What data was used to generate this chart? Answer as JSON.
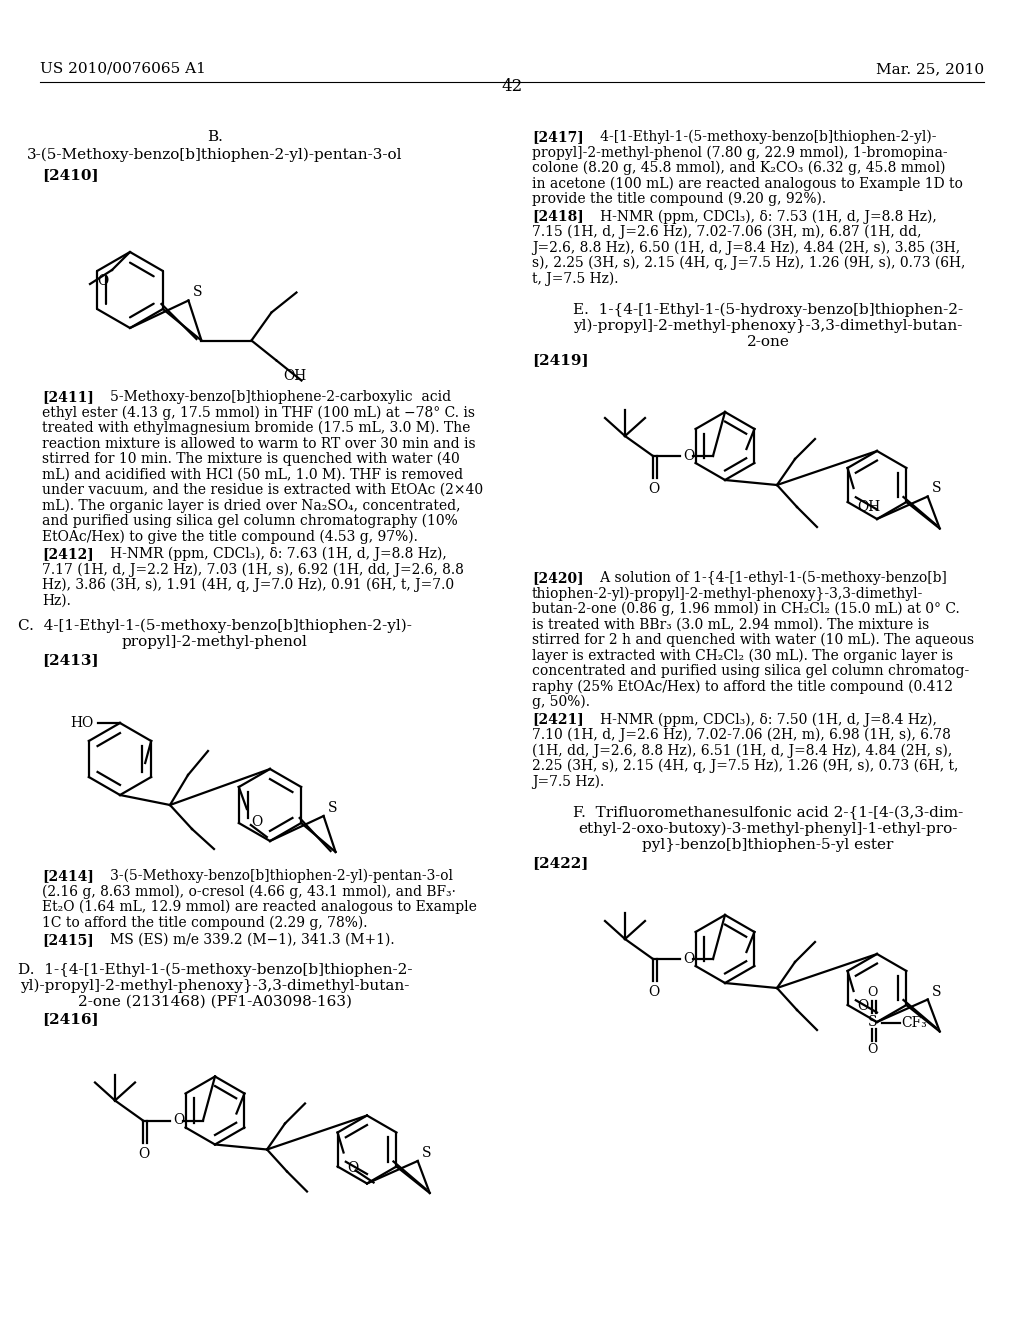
{
  "bg": "#ffffff",
  "header_left": "US 2010/0076065 A1",
  "header_right": "Mar. 25, 2010",
  "page_num": "42",
  "left_col": {
    "sec_b_title1": "B.",
    "sec_b_title2": "3-(5-Methoxy-benzo[b]thiophen-2-yl)-pentan-3-ol",
    "label_2410": "[2410]",
    "para_2411_label": "[2411]",
    "para_2411": "5-Methoxy-benzo[b]thiophene-2-carboxylic  acid ethyl ester (4.13 g, 17.5 mmol) in THF (100 mL) at −78° C. is treated with ethylmagnesium bromide (17.5 mL, 3.0 M). The reaction mixture is allowed to warm to RT over 30 min and is stirred for 10 min. The mixture is quenched with water (40 mL) and acidified with HCl (50 mL, 1.0 M). THF is removed under vacuum, and the residue is extracted with EtOAc (2×40 mL). The organic layer is dried over Na₂SO₄, concentrated, and purified using silica gel column chromatography (10% EtOAc/Hex) to give the title compound (4.53 g, 97%).",
    "para_2412_label": "[2412]",
    "para_2412": "H-NMR (ppm, CDCl₃), δ: 7.63 (1H, d, J=8.8 Hz), 7.17 (1H, d, J=2.2 Hz), 7.03 (1H, s), 6.92 (1H, dd, J=2.6, 8.8 Hz), 3.86 (3H, s), 1.91 (4H, q, J=7.0 Hz), 0.91 (6H, t, J=7.0 Hz).",
    "sec_c_title1": "C.  4-[1-Ethyl-1-(5-methoxy-benzo[b]thiophen-2-yl)-",
    "sec_c_title2": "propyl]-2-methyl-phenol",
    "label_2413": "[2413]",
    "para_2414_label": "[2414]",
    "para_2414": "3-(5-Methoxy-benzo[b]thiophen-2-yl)-pentan-3-ol (2.16 g, 8.63 mmol), o-cresol (4.66 g, 43.1 mmol), and BF₃·Et₂O (1.64 mL, 12.9 mmol) are reacted analogous to Example 1C to afford the title compound (2.29 g, 78%).",
    "para_2415_label": "[2415]",
    "para_2415": "MS (ES) m/e 339.2 (M−1), 341.3 (M+1).",
    "sec_d_title1": "D.  1-{4-[1-Ethyl-1-(5-methoxy-benzo[b]thiophen-2-",
    "sec_d_title2": "yl)-propyl]-2-methyl-phenoxy}-3,3-dimethyl-butan-",
    "sec_d_title3": "2-one (2131468) (PF1-A03098-163)",
    "label_2416": "[2416]"
  },
  "right_col": {
    "para_2417_label": "[2417]",
    "para_2417": "4-[1-Ethyl-1-(5-methoxy-benzo[b]thiophen-2-yl)-propyl]-2-methyl-phenol (7.80 g, 22.9 mmol), 1-bromopinacolone (8.20 g, 45.8 mmol), and K₂CO₃ (6.32 g, 45.8 mmol) in acetone (100 mL) are reacted analogous to Example 1D to provide the title compound (9.20 g, 92%).",
    "para_2418_label": "[2418]",
    "para_2418": "H-NMR (ppm, CDCl₃), δ: 7.53 (1H, d, J=8.8 Hz), 7.15 (1H, d, J=2.6 Hz), 7.02-7.06 (3H, m), 6.87 (1H, dd, J=2.6, 8.8 Hz), 6.50 (1H, d, J=8.4 Hz), 4.84 (2H, s), 3.85 (3H, s), 2.25 (3H, s), 2.15 (4H, q, J=7.5 Hz), 1.26 (9H, s), 0.73 (6H, t, J=7.5 Hz).",
    "sec_e_title1": "E.  1-{4-[1-Ethyl-1-(5-hydroxy-benzo[b]thiophen-2-",
    "sec_e_title2": "yl)-propyl]-2-methyl-phenoxy}-3,3-dimethyl-butan-",
    "sec_e_title3": "2-one",
    "label_2419": "[2419]",
    "para_2420_label": "[2420]",
    "para_2420": "A solution of 1-{4-[1-ethyl-1-(5-methoxy-benzo[b]thiophen-2-yl)-propyl]-2-methyl-phenoxy}-3,3-dimethylbutan-2-one (0.86 g, 1.96 mmol) in CH₂Cl₂ (15.0 mL) at 0° C. is treated with BBr₃ (3.0 mL, 2.94 mmol). The mixture is stirred for 2 h and quenched with water (10 mL). The aqueous layer is extracted with CH₂Cl₂ (30 mL). The organic layer is concentrated and purified using silica gel column chromatog-raphy (25% EtOAc/Hex) to afford the title compound (0.412 g, 50%).",
    "para_2421_label": "[2421]",
    "para_2421": "H-NMR (ppm, CDCl₃), δ: 7.50 (1H, d, J=8.4 Hz), 7.10 (1H, d, J=2.6 Hz), 7.02-7.06 (2H, m), 6.98 (1H, s), 6.78 (1H, dd, J=2.6, 8.8 Hz), 6.51 (1H, d, J=8.4 Hz), 4.84 (2H, s), 2.25 (3H, s), 2.15 (4H, q, J=7.5 Hz), 1.26 (9H, s), 0.73 (6H, t, J=7.5 Hz).",
    "sec_f_title1": "F.  Trifluoromethanesulfonic acid 2-{1-[4-(3,3-dim-",
    "sec_f_title2": "ethyl-2-oxo-butoxy)-3-methyl-phenyl]-1-ethyl-pro-",
    "sec_f_title3": "pyl}-benzo[b]thiophen-5-yl ester",
    "label_2422": "[2422]"
  }
}
